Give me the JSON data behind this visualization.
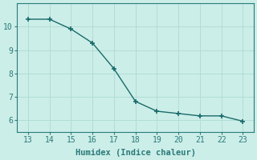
{
  "x": [
    13,
    14,
    15,
    16,
    17,
    18,
    19,
    20,
    21,
    22,
    23
  ],
  "y": [
    10.32,
    10.32,
    9.9,
    9.3,
    8.2,
    6.8,
    6.38,
    6.28,
    6.18,
    6.18,
    5.95
  ],
  "line_color": "#1a6b6b",
  "marker": "+",
  "marker_size": 5,
  "marker_lw": 1.2,
  "background_color": "#cceee8",
  "grid_color": "#b0ddd6",
  "xlabel": "Humidex (Indice chaleur)",
  "xlabel_fontsize": 7.5,
  "tick_fontsize": 7,
  "xlim": [
    12.5,
    23.5
  ],
  "ylim": [
    5.5,
    11.0
  ],
  "yticks": [
    6,
    7,
    8,
    9,
    10
  ],
  "xticks": [
    13,
    14,
    15,
    16,
    17,
    18,
    19,
    20,
    21,
    22,
    23
  ],
  "line_width": 1.0,
  "spine_color": "#2a7a7a",
  "tick_color": "#2a7a7a",
  "label_color": "#2a7a7a"
}
